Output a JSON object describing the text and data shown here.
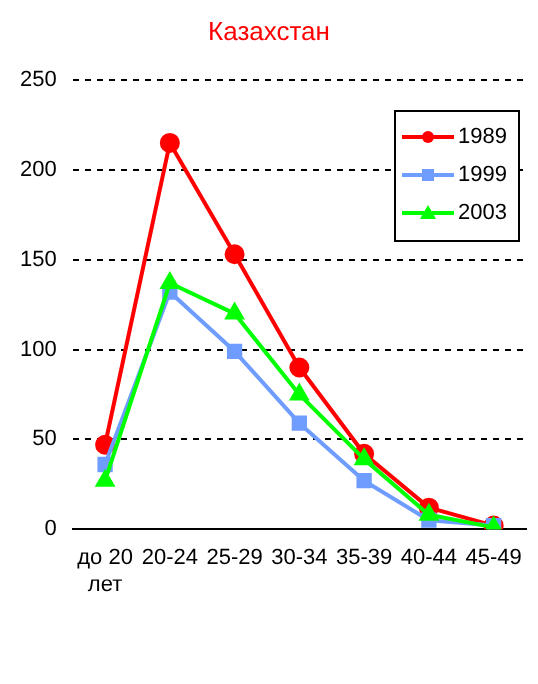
{
  "chart_data": {
    "type": "line",
    "title": "Казахстан",
    "categories": [
      "до 20 лет",
      "20-24",
      "25-29",
      "30-34",
      "35-39",
      "40-44",
      "45-49"
    ],
    "series": [
      {
        "name": "1989",
        "color": "#ff0000",
        "marker": "circle",
        "values": [
          47,
          215,
          153,
          90,
          42,
          12,
          2
        ]
      },
      {
        "name": "1999",
        "color": "#6f9cff",
        "marker": "square",
        "values": [
          36,
          132,
          99,
          59,
          27,
          5,
          2
        ]
      },
      {
        "name": "2003",
        "color": "#00ff00",
        "marker": "triangle",
        "values": [
          27,
          137,
          120,
          75,
          39,
          8,
          1
        ]
      }
    ],
    "ylim": [
      0,
      250
    ],
    "yticks": [
      0,
      50,
      100,
      150,
      200,
      250
    ],
    "grid": "y",
    "legend": "top right"
  }
}
